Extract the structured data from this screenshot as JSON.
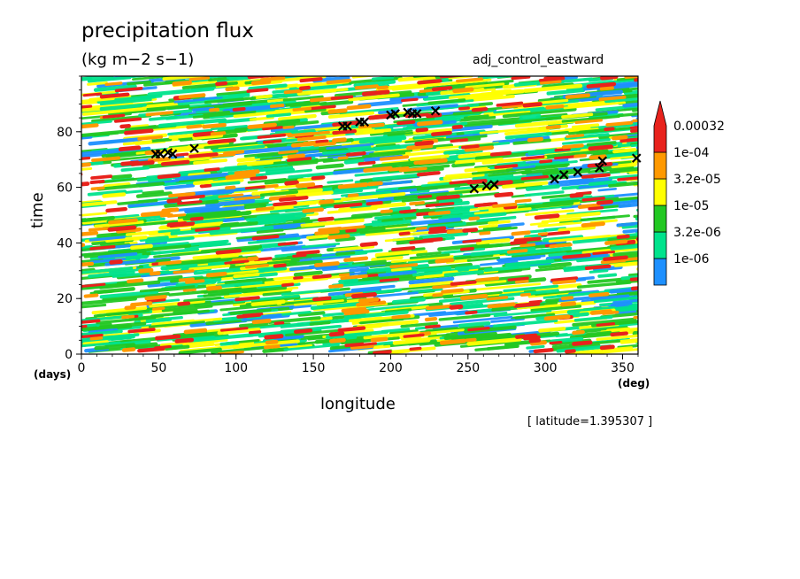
{
  "chart_data": {
    "type": "heatmap",
    "title": "precipitation flux",
    "units": "(kg m−2 s−1)",
    "run_name": "adj_control_eastward",
    "xlabel": "longitude",
    "ylabel": "time",
    "x_unit": "(deg)",
    "y_unit": "(days)",
    "xlim": [
      0,
      360
    ],
    "ylim": [
      0,
      100
    ],
    "x_ticks": [
      0,
      50,
      100,
      150,
      200,
      250,
      300,
      350
    ],
    "y_ticks": [
      0,
      20,
      40,
      60,
      80
    ],
    "annotation": "[ latitude=1.395307 ]",
    "colorbar": {
      "labels": [
        "0.00032",
        "1e-04",
        "3.2e-05",
        "1e-05",
        "3.2e-06",
        "1e-06"
      ],
      "colors": [
        "#1e90ff",
        "#00e38c",
        "#22c822",
        "#ffff00",
        "#ff9900",
        "#e8221c"
      ]
    },
    "markers": [
      {
        "x": 48,
        "y": 72
      },
      {
        "x": 51,
        "y": 72
      },
      {
        "x": 56,
        "y": 72.5
      },
      {
        "x": 59,
        "y": 72
      },
      {
        "x": 73,
        "y": 74
      },
      {
        "x": 169,
        "y": 82
      },
      {
        "x": 172,
        "y": 82
      },
      {
        "x": 180,
        "y": 83.5
      },
      {
        "x": 183,
        "y": 83.5
      },
      {
        "x": 200,
        "y": 86
      },
      {
        "x": 203,
        "y": 86.5
      },
      {
        "x": 211,
        "y": 87
      },
      {
        "x": 214,
        "y": 86.5
      },
      {
        "x": 217,
        "y": 86.5
      },
      {
        "x": 229,
        "y": 87.5
      },
      {
        "x": 254,
        "y": 59.5
      },
      {
        "x": 262,
        "y": 60.5
      },
      {
        "x": 267,
        "y": 61
      },
      {
        "x": 306,
        "y": 63
      },
      {
        "x": 312,
        "y": 64.5
      },
      {
        "x": 321,
        "y": 65.5
      },
      {
        "x": 335,
        "y": 67
      },
      {
        "x": 337,
        "y": 69.5
      },
      {
        "x": 359,
        "y": 70.5
      }
    ]
  }
}
